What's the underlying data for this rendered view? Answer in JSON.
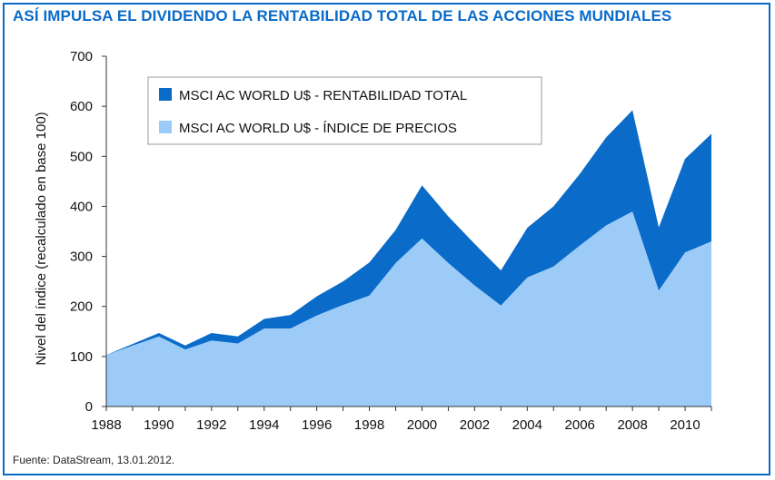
{
  "title": "ASÍ IMPULSA EL DIVIDENDO LA RENTABILIDAD TOTAL DE LAS ACCIONES MUNDIALES",
  "source": "Fuente: DataStream, 13.01.2012.",
  "colors": {
    "total_return": "#0a6bc9",
    "price_index": "#9ccbf7",
    "title": "#0a6bc9"
  },
  "chart_data": {
    "type": "area",
    "title": "ASÍ IMPULSA EL DIVIDENDO LA RENTABILIDAD TOTAL DE LAS ACCIONES MUNDIALES",
    "xlabel": "",
    "ylabel": "Nivel del índice (recalculado en base 100)",
    "xlim": [
      1988,
      2011
    ],
    "ylim": [
      0,
      700
    ],
    "xticks": [
      "1988",
      "1990",
      "1992",
      "1994",
      "1996",
      "1998",
      "2000",
      "2002",
      "2004",
      "2006",
      "2008",
      "2010"
    ],
    "yticks": [
      "0",
      "100",
      "200",
      "300",
      "400",
      "500",
      "600",
      "700"
    ],
    "legend_position": "top-left",
    "x": [
      1988,
      1989,
      1990,
      1991,
      1992,
      1993,
      1994,
      1995,
      1996,
      1997,
      1998,
      1999,
      2000,
      2001,
      2002,
      2003,
      2004,
      2005,
      2006,
      2007,
      2008,
      2009,
      2010,
      2011
    ],
    "series": [
      {
        "name": "MSCI AC WORLD U$ - RENTABILIDAD TOTAL",
        "color": "#0a6bc9",
        "values": [
          103,
          125,
          147,
          122,
          147,
          140,
          175,
          183,
          220,
          250,
          288,
          353,
          442,
          380,
          325,
          272,
          357,
          400,
          465,
          538,
          592,
          358,
          495,
          545
        ]
      },
      {
        "name": "MSCI AC WORLD U$ - ÍNDICE DE PRECIOS",
        "color": "#9ccbf7",
        "values": [
          103,
          122,
          140,
          114,
          132,
          126,
          156,
          156,
          182,
          203,
          222,
          287,
          336,
          287,
          242,
          202,
          258,
          280,
          322,
          362,
          390,
          232,
          308,
          330
        ]
      }
    ]
  }
}
